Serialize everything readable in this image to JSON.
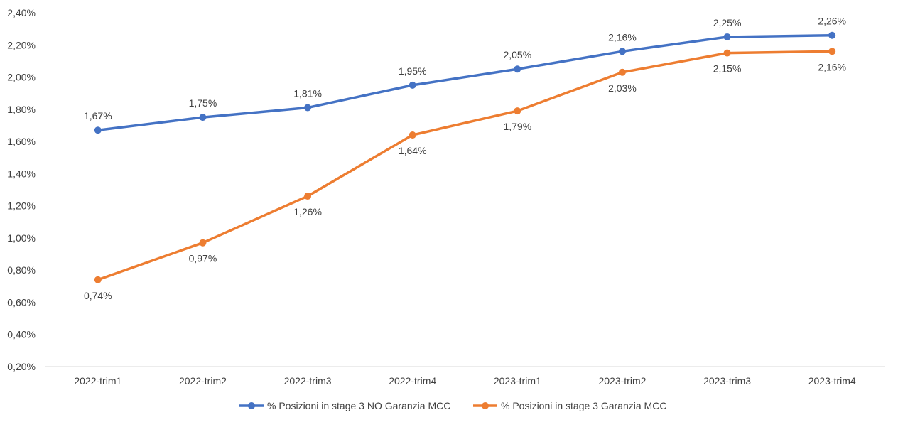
{
  "chart_data": {
    "type": "line",
    "title": "",
    "xlabel": "",
    "ylabel": "",
    "categories": [
      "2022-trim1",
      "2022-trim2",
      "2022-trim3",
      "2022-trim4",
      "2023-trim1",
      "2023-trim2",
      "2023-trim3",
      "2023-trim4"
    ],
    "ylim": [
      0.2,
      2.4
    ],
    "yticks": [
      0.2,
      0.4,
      0.6,
      0.8,
      1.0,
      1.2,
      1.4,
      1.6,
      1.8,
      2.0,
      2.2,
      2.4
    ],
    "ytick_labels": [
      "0,20%",
      "0,40%",
      "0,60%",
      "0,80%",
      "1,00%",
      "1,20%",
      "1,40%",
      "1,60%",
      "1,80%",
      "2,00%",
      "2,20%",
      "2,40%"
    ],
    "grid": false,
    "legend_position": "bottom",
    "series": [
      {
        "name": "% Posizioni in stage 3 NO Garanzia MCC",
        "color": "#4472C4",
        "values": [
          1.67,
          1.75,
          1.81,
          1.95,
          2.05,
          2.16,
          2.25,
          2.26
        ],
        "labels": [
          "1,67%",
          "1,75%",
          "1,81%",
          "1,95%",
          "2,05%",
          "2,16%",
          "2,25%",
          "2,26%"
        ],
        "label_position": "above"
      },
      {
        "name": "% Posizioni in stage 3 Garanzia MCC",
        "color": "#ED7D31",
        "values": [
          0.74,
          0.97,
          1.26,
          1.64,
          1.79,
          2.03,
          2.15,
          2.16
        ],
        "labels": [
          "0,74%",
          "0,97%",
          "1,26%",
          "1,64%",
          "1,79%",
          "2,03%",
          "2,15%",
          "2,16%"
        ],
        "label_position": "below"
      }
    ]
  }
}
